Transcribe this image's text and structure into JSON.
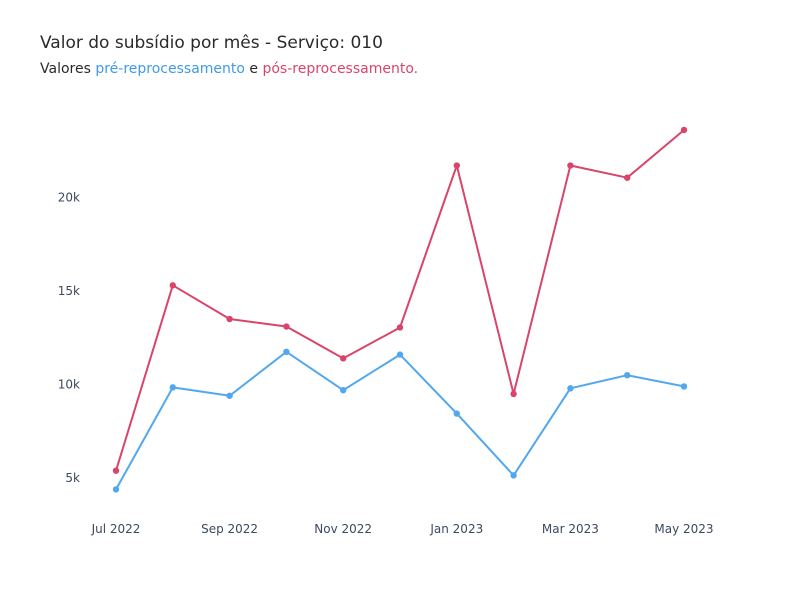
{
  "chart_data": {
    "type": "line",
    "title": "Valor do subsídio por mês - Serviço: 010",
    "subtitle": {
      "prefix": "Valores ",
      "pre_label": "pré-reprocessamento",
      "middle": " e ",
      "pos_label": "pós-reprocessamento."
    },
    "x": [
      "2022-07",
      "2022-08",
      "2022-09",
      "2022-10",
      "2022-11",
      "2022-12",
      "2023-01",
      "2023-02",
      "2023-03",
      "2023-04",
      "2023-05"
    ],
    "x_ticks": [
      {
        "month": "2022-07",
        "label": "Jul 2022"
      },
      {
        "month": "2022-09",
        "label": "Sep 2022"
      },
      {
        "month": "2022-11",
        "label": "Nov 2022"
      },
      {
        "month": "2023-01",
        "label": "Jan 2023"
      },
      {
        "month": "2023-03",
        "label": "Mar 2023"
      },
      {
        "month": "2023-05",
        "label": "May 2023"
      }
    ],
    "y_ticks": [
      {
        "value": 5000,
        "label": "5k"
      },
      {
        "value": 10000,
        "label": "10k"
      },
      {
        "value": 15000,
        "label": "15k"
      },
      {
        "value": 20000,
        "label": "20k"
      }
    ],
    "ylim": [
      3300,
      25200
    ],
    "grid": false,
    "series": [
      {
        "color": "#d9456a",
        "values": [
          5400,
          15300,
          13500,
          13100,
          11400,
          13050,
          21700,
          9500,
          21700,
          21050,
          23600
        ]
      },
      {
        "color": "#52a8ee",
        "values": [
          4400,
          9850,
          9400,
          11750,
          9700,
          11600,
          8450,
          5150,
          9800,
          10500,
          9900
        ]
      }
    ]
  }
}
